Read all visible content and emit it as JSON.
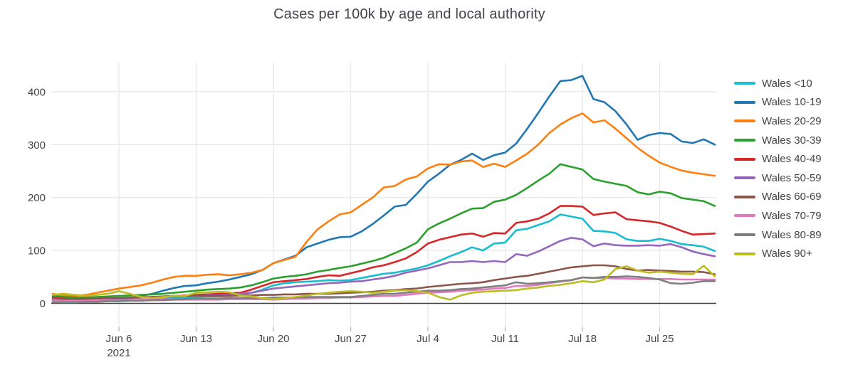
{
  "chart": {
    "title": "Cases per 100k by age and local authority"
  },
  "chart_data": {
    "type": "line",
    "title": "Cases per 100k by age and local authority",
    "xlabel": "",
    "ylabel": "",
    "grid": true,
    "legend_position": "right",
    "y_ticks": [
      0,
      100,
      200,
      300,
      400
    ],
    "ylim": [
      -45,
      455
    ],
    "x_tick_labels": [
      "Jun 6",
      "Jun 13",
      "Jun 20",
      "Jun 27",
      "Jul 4",
      "Jul 11",
      "Jul 18",
      "Jul 25"
    ],
    "x_tick_days": [
      6,
      13,
      20,
      27,
      34,
      41,
      48,
      55
    ],
    "x_year_label": "2021",
    "style": {
      "background": "#ffffff",
      "grid_color": "#e8e8e8",
      "zero_line_color": "#3d3d3d",
      "tick_mark_color": "#b5b5b5",
      "text_color": "#444444",
      "title_color": "#42454c"
    },
    "x": [
      "May 31",
      "Jun 1",
      "Jun 2",
      "Jun 3",
      "Jun 4",
      "Jun 5",
      "Jun 6",
      "Jun 7",
      "Jun 8",
      "Jun 9",
      "Jun 10",
      "Jun 11",
      "Jun 12",
      "Jun 13",
      "Jun 14",
      "Jun 15",
      "Jun 16",
      "Jun 17",
      "Jun 18",
      "Jun 19",
      "Jun 20",
      "Jun 21",
      "Jun 22",
      "Jun 23",
      "Jun 24",
      "Jun 25",
      "Jun 26",
      "Jun 27",
      "Jun 28",
      "Jun 29",
      "Jun 30",
      "Jul 1",
      "Jul 2",
      "Jul 3",
      "Jul 4",
      "Jul 5",
      "Jul 6",
      "Jul 7",
      "Jul 8",
      "Jul 9",
      "Jul 10",
      "Jul 11",
      "Jul 12",
      "Jul 13",
      "Jul 14",
      "Jul 15",
      "Jul 16",
      "Jul 17",
      "Jul 18",
      "Jul 19",
      "Jul 20",
      "Jul 21",
      "Jul 22",
      "Jul 23",
      "Jul 24",
      "Jul 25",
      "Jul 26",
      "Jul 27",
      "Jul 28",
      "Jul 29",
      "Jul 30"
    ],
    "series": [
      {
        "name": "Wales <10",
        "color": "#17becf",
        "values": [
          3,
          2,
          2,
          3,
          3,
          4,
          4,
          5,
          6,
          7,
          8,
          10,
          11,
          12,
          13,
          13,
          14,
          16,
          20,
          26,
          34,
          38,
          40,
          41,
          42,
          44,
          43,
          44,
          48,
          52,
          56,
          58,
          62,
          66,
          72,
          80,
          89,
          97,
          106,
          100,
          113,
          115,
          138,
          141,
          148,
          155,
          168,
          164,
          160,
          137,
          136,
          133,
          121,
          118,
          118,
          122,
          118,
          112,
          110,
          107,
          99
        ]
      },
      {
        "name": "Wales 10-19",
        "color": "#1f77b4",
        "values": [
          6,
          5,
          5,
          6,
          6,
          7,
          8,
          10,
          14,
          18,
          24,
          29,
          33,
          34,
          38,
          41,
          45,
          50,
          55,
          63,
          76,
          83,
          90,
          106,
          113,
          120,
          125,
          126,
          136,
          150,
          166,
          183,
          186,
          207,
          230,
          245,
          262,
          271,
          283,
          271,
          280,
          285,
          302,
          330,
          360,
          391,
          420,
          422,
          430,
          386,
          380,
          363,
          338,
          309,
          318,
          322,
          320,
          306,
          303,
          310,
          300
        ]
      },
      {
        "name": "Wales 20-29",
        "color": "#ff7f0e",
        "values": [
          18,
          15,
          14,
          16,
          20,
          24,
          28,
          31,
          34,
          39,
          45,
          50,
          52,
          52,
          54,
          55,
          53,
          55,
          58,
          63,
          76,
          82,
          88,
          116,
          140,
          155,
          168,
          172,
          186,
          200,
          219,
          222,
          234,
          240,
          255,
          263,
          262,
          268,
          270,
          258,
          264,
          258,
          270,
          283,
          300,
          322,
          338,
          350,
          359,
          342,
          346,
          330,
          312,
          294,
          279,
          266,
          258,
          251,
          247,
          244,
          241
        ]
      },
      {
        "name": "Wales 30-39",
        "color": "#2ca02c",
        "values": [
          14,
          12,
          11,
          11,
          12,
          13,
          14,
          15,
          16,
          17,
          18,
          20,
          22,
          24,
          26,
          27,
          28,
          30,
          34,
          40,
          47,
          50,
          52,
          55,
          60,
          63,
          67,
          70,
          75,
          80,
          86,
          95,
          104,
          115,
          140,
          151,
          160,
          170,
          179,
          180,
          192,
          196,
          205,
          218,
          232,
          245,
          263,
          258,
          253,
          235,
          230,
          226,
          222,
          210,
          206,
          211,
          208,
          199,
          196,
          193,
          184
        ]
      },
      {
        "name": "Wales 40-49",
        "color": "#d62728",
        "values": [
          11,
          9,
          8,
          8,
          9,
          9,
          10,
          10,
          11,
          12,
          13,
          14,
          15,
          16,
          17,
          18,
          19,
          20,
          26,
          33,
          40,
          42,
          44,
          46,
          50,
          53,
          52,
          57,
          62,
          68,
          72,
          78,
          85,
          97,
          113,
          120,
          125,
          130,
          132,
          126,
          133,
          132,
          152,
          155,
          160,
          170,
          184,
          184,
          183,
          167,
          170,
          172,
          159,
          157,
          155,
          152,
          145,
          137,
          130,
          131,
          132
        ]
      },
      {
        "name": "Wales 50-59",
        "color": "#9467bd",
        "values": [
          9,
          8,
          8,
          8,
          9,
          9,
          10,
          10,
          11,
          11,
          12,
          13,
          13,
          14,
          15,
          15,
          16,
          18,
          20,
          24,
          28,
          30,
          32,
          34,
          36,
          38,
          39,
          41,
          42,
          45,
          48,
          52,
          58,
          62,
          66,
          72,
          78,
          78,
          80,
          78,
          80,
          78,
          93,
          90,
          98,
          108,
          118,
          124,
          121,
          108,
          113,
          110,
          109,
          109,
          110,
          109,
          112,
          106,
          98,
          93,
          89
        ]
      },
      {
        "name": "Wales 60-69",
        "color": "#8c564b",
        "values": [
          8,
          8,
          8,
          9,
          9,
          10,
          10,
          11,
          12,
          12,
          13,
          14,
          14,
          15,
          14,
          14,
          14,
          15,
          15,
          16,
          16,
          17,
          17,
          18,
          18,
          18,
          19,
          20,
          21,
          22,
          24,
          25,
          27,
          28,
          31,
          33,
          35,
          37,
          38,
          40,
          44,
          47,
          50,
          52,
          56,
          60,
          64,
          68,
          70,
          72,
          72,
          70,
          65,
          62,
          63,
          62,
          61,
          60,
          60,
          59,
          55
        ]
      },
      {
        "name": "Wales 70-79",
        "color": "#e377c2",
        "values": [
          6,
          5,
          5,
          5,
          6,
          6,
          6,
          6,
          7,
          7,
          7,
          7,
          7,
          7,
          7,
          7,
          8,
          8,
          8,
          8,
          7,
          8,
          9,
          9,
          10,
          10,
          11,
          11,
          12,
          13,
          14,
          14,
          16,
          18,
          20,
          21,
          22,
          24,
          25,
          26,
          28,
          29,
          33,
          33,
          35,
          38,
          41,
          44,
          49,
          48,
          48,
          47,
          47,
          46,
          46,
          46,
          46,
          45,
          45,
          45,
          45
        ]
      },
      {
        "name": "Wales 80-89",
        "color": "#7f7f7f",
        "values": [
          2,
          2,
          2,
          3,
          3,
          4,
          4,
          5,
          5,
          6,
          6,
          7,
          8,
          9,
          9,
          9,
          10,
          10,
          10,
          10,
          11,
          11,
          11,
          12,
          12,
          12,
          12,
          12,
          14,
          16,
          18,
          18,
          20,
          22,
          24,
          24,
          25,
          27,
          28,
          30,
          32,
          34,
          40,
          37,
          38,
          40,
          42,
          44,
          49,
          48,
          50,
          50,
          51,
          50,
          48,
          45,
          38,
          37,
          39,
          42,
          42
        ]
      },
      {
        "name": "Wales 90+",
        "color": "#bcbd22",
        "values": [
          16,
          18,
          16,
          14,
          16,
          18,
          23,
          18,
          12,
          10,
          12,
          14,
          14,
          20,
          21,
          22,
          21,
          15,
          13,
          10,
          8,
          10,
          12,
          15,
          18,
          20,
          22,
          23,
          22,
          20,
          22,
          24,
          25,
          23,
          20,
          12,
          7,
          15,
          20,
          22,
          23,
          24,
          25,
          28,
          30,
          33,
          35,
          38,
          42,
          40,
          45,
          65,
          70,
          62,
          58,
          60,
          58,
          56,
          55,
          71,
          51
        ]
      }
    ]
  }
}
